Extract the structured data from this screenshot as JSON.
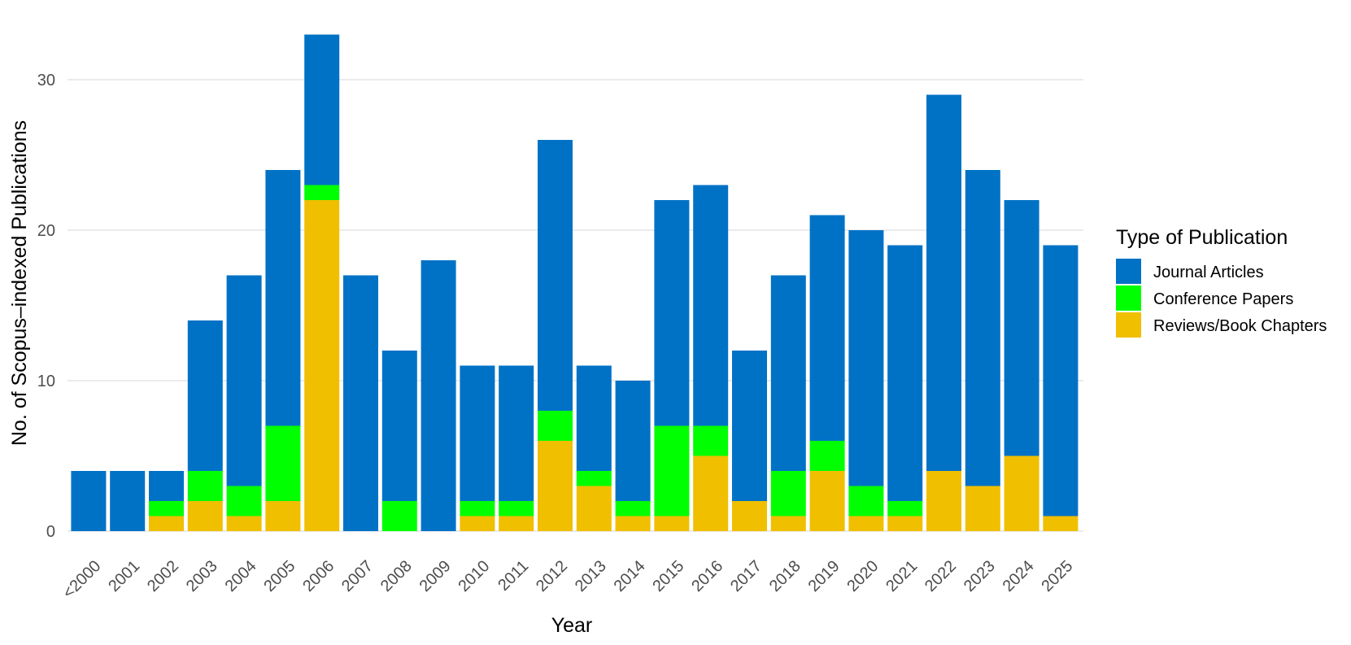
{
  "chart_data": {
    "type": "bar",
    "stacked": true,
    "title": "",
    "xlabel": "Year",
    "ylabel": "No. of Scopus–indexed Publications",
    "ylim": [
      0,
      33
    ],
    "yticks": [
      0,
      10,
      20,
      30
    ],
    "grid": "horizontal",
    "legend_position": "right",
    "legend_title": "Type of Publication",
    "categories": [
      "<2000",
      "2001",
      "2002",
      "2003",
      "2004",
      "2005",
      "2006",
      "2007",
      "2008",
      "2009",
      "2010",
      "2011",
      "2012",
      "2013",
      "2014",
      "2015",
      "2016",
      "2017",
      "2018",
      "2019",
      "2020",
      "2021",
      "2022",
      "2023",
      "2024",
      "2025"
    ],
    "series": [
      {
        "name": "Journal Articles",
        "color": "#0072C6",
        "values": [
          4,
          4,
          2,
          10,
          14,
          17,
          10,
          17,
          10,
          18,
          9,
          9,
          18,
          7,
          8,
          15,
          16,
          10,
          13,
          15,
          17,
          17,
          25,
          21,
          17,
          18
        ]
      },
      {
        "name": "Conference Papers",
        "color": "#00FF00",
        "values": [
          0,
          0,
          1,
          2,
          2,
          5,
          1,
          0,
          2,
          0,
          1,
          1,
          2,
          1,
          1,
          6,
          2,
          0,
          3,
          2,
          2,
          1,
          0,
          0,
          0,
          0
        ]
      },
      {
        "name": "Reviews/Book Chapters",
        "color": "#F0BF00",
        "values": [
          0,
          0,
          1,
          2,
          1,
          2,
          22,
          0,
          0,
          0,
          1,
          1,
          6,
          3,
          1,
          1,
          5,
          2,
          1,
          4,
          1,
          1,
          4,
          3,
          5,
          1
        ]
      }
    ]
  }
}
